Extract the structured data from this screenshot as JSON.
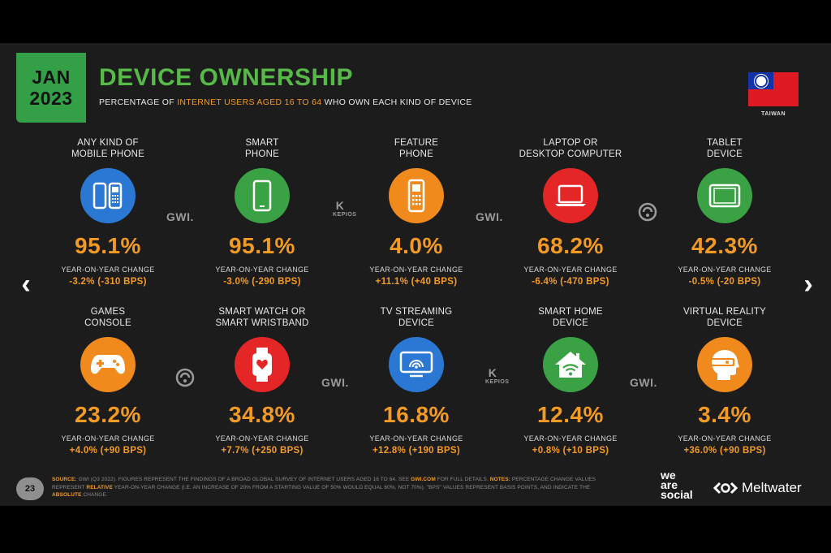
{
  "header": {
    "date_line1": "JAN",
    "date_line2": "2023",
    "title": "DEVICE OWNERSHIP",
    "subtitle_pre": "PERCENTAGE OF ",
    "subtitle_highlight": "INTERNET USERS AGED 16 TO 64",
    "subtitle_post": " WHO OWN EACH KIND OF DEVICE",
    "country": "TAIWAN"
  },
  "nav": {
    "prev": "‹",
    "next": "›"
  },
  "devices": [
    {
      "label1": "ANY KIND OF",
      "label2": "MOBILE PHONE",
      "icon": "mobile-phones-icon",
      "color": "#2a78d4",
      "value": "95.1%",
      "yoy_label": "YEAR-ON-YEAR CHANGE",
      "yoy_value": "-3.2% (-310 BPS)"
    },
    {
      "label1": "SMART",
      "label2": "PHONE",
      "icon": "smartphone-icon",
      "color": "#3aa144",
      "value": "95.1%",
      "yoy_label": "YEAR-ON-YEAR CHANGE",
      "yoy_value": "-3.0% (-290 BPS)"
    },
    {
      "label1": "FEATURE",
      "label2": "PHONE",
      "icon": "feature-phone-icon",
      "color": "#f08a1c",
      "value": "4.0%",
      "yoy_label": "YEAR-ON-YEAR CHANGE",
      "yoy_value": "+11.1% (+40 BPS)"
    },
    {
      "label1": "LAPTOP OR",
      "label2": "DESKTOP COMPUTER",
      "icon": "laptop-icon",
      "color": "#e52626",
      "value": "68.2%",
      "yoy_label": "YEAR-ON-YEAR CHANGE",
      "yoy_value": "-6.4% (-470 BPS)"
    },
    {
      "label1": "TABLET",
      "label2": "DEVICE",
      "icon": "tablet-icon",
      "color": "#3aa144",
      "value": "42.3%",
      "yoy_label": "YEAR-ON-YEAR CHANGE",
      "yoy_value": "-0.5% (-20 BPS)"
    },
    {
      "label1": "GAMES",
      "label2": "CONSOLE",
      "icon": "game-controller-icon",
      "color": "#f08a1c",
      "value": "23.2%",
      "yoy_label": "YEAR-ON-YEAR CHANGE",
      "yoy_value": "+4.0% (+90 BPS)"
    },
    {
      "label1": "SMART WATCH OR",
      "label2": "SMART WRISTBAND",
      "icon": "smartwatch-icon",
      "color": "#e52626",
      "value": "34.8%",
      "yoy_label": "YEAR-ON-YEAR CHANGE",
      "yoy_value": "+7.7% (+250 BPS)"
    },
    {
      "label1": "TV STREAMING",
      "label2": "DEVICE",
      "icon": "tv-streaming-icon",
      "color": "#2a78d4",
      "value": "16.8%",
      "yoy_label": "YEAR-ON-YEAR CHANGE",
      "yoy_value": "+12.8% (+190 BPS)"
    },
    {
      "label1": "SMART HOME",
      "label2": "DEVICE",
      "icon": "smart-home-icon",
      "color": "#3aa144",
      "value": "12.4%",
      "yoy_label": "YEAR-ON-YEAR CHANGE",
      "yoy_value": "+0.8% (+10 BPS)"
    },
    {
      "label1": "VIRTUAL REALITY",
      "label2": "DEVICE",
      "icon": "vr-headset-icon",
      "color": "#f08a1c",
      "value": "3.4%",
      "yoy_label": "YEAR-ON-YEAR CHANGE",
      "yoy_value": "+36.0% (+90 BPS)"
    }
  ],
  "sources": {
    "gwi": "GWI.",
    "kepios_text": "KEPIOS"
  },
  "footer": {
    "page": "23",
    "source_label": "SOURCE:",
    "source_text": " GWI (Q3 2022). FIGURES REPRESENT THE FINDINGS OF A BROAD GLOBAL SURVEY OF INTERNET USERS AGED 16 TO 64. SEE ",
    "source_link": "GWI.COM",
    "source_after": " FOR FULL DETAILS. ",
    "notes_label": "NOTES:",
    "notes_1": " PERCENTAGE CHANGE VALUES REPRESENT ",
    "relative": "RELATIVE",
    "notes_2": " YEAR-ON-YEAR CHANGE (I.E. AN INCREASE OF 20% FROM A STARTING VALUE OF 50% WOULD EQUAL 60%, NOT 70%). \"BPS\" VALUES REPRESENT BASIS POINTS, AND INDICATE THE ",
    "absolute": "ABSOLUTE",
    "notes_3": " CHANGE.",
    "brand1_l1": "we",
    "brand1_l2": "are",
    "brand1_l3": "social",
    "brand2": "Meltwater"
  }
}
